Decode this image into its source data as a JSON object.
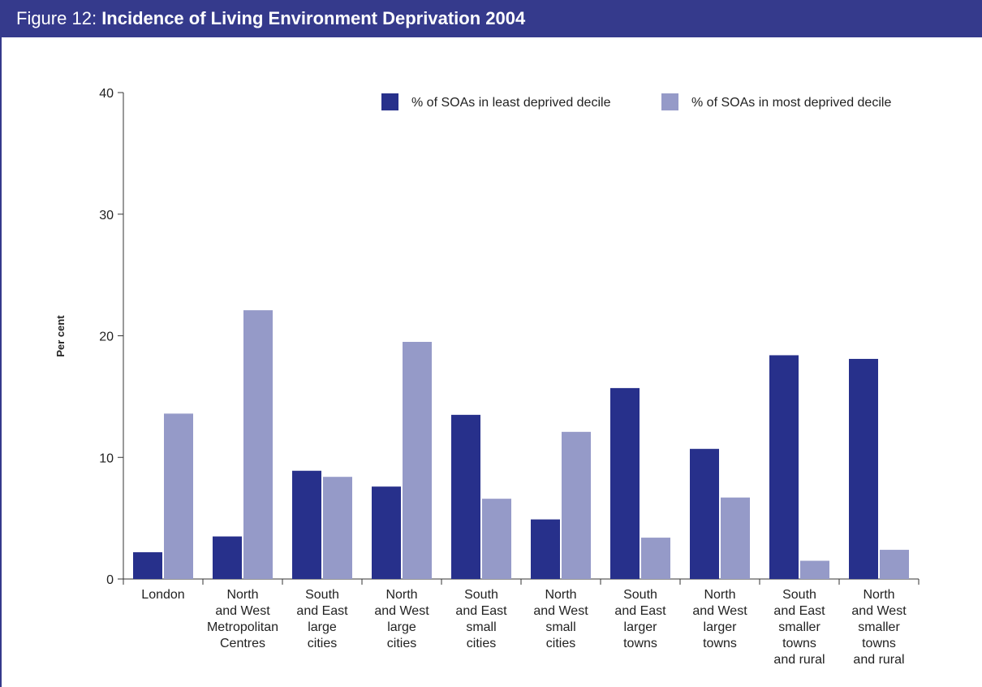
{
  "figure": {
    "label": "Figure 12:",
    "title": "Incidence of Living Environment Deprivation 2004"
  },
  "colors": {
    "title_bar": "#353a8c",
    "series_least": "#27308b",
    "series_most": "#959ac8",
    "axis": "#333333"
  },
  "chart_data": {
    "type": "bar",
    "title": "Incidence of Living Environment Deprivation 2004",
    "ylabel": "Per cent",
    "xlabel": "",
    "ylim": [
      0,
      40
    ],
    "yticks": [
      0,
      10,
      20,
      30,
      40
    ],
    "grid": false,
    "legend_position": "top-right",
    "categories": [
      [
        "London"
      ],
      [
        "North",
        "and West",
        "Metropolitan",
        "Centres"
      ],
      [
        "South",
        "and East",
        "large",
        "cities"
      ],
      [
        "North",
        "and West",
        "large",
        "cities"
      ],
      [
        "South",
        "and East",
        "small",
        "cities"
      ],
      [
        "North",
        "and West",
        "small",
        "cities"
      ],
      [
        "South",
        "and East",
        "larger",
        "towns"
      ],
      [
        "North",
        "and West",
        "larger",
        "towns"
      ],
      [
        "South",
        "and East",
        "smaller",
        "towns",
        "and rural"
      ],
      [
        "North",
        "and West",
        "smaller",
        "towns",
        "and rural"
      ]
    ],
    "series": [
      {
        "name": "% of SOAs in least deprived decile",
        "color": "#27308b",
        "values": [
          2.2,
          3.5,
          8.9,
          7.6,
          13.5,
          4.9,
          15.7,
          10.7,
          18.4,
          18.1
        ]
      },
      {
        "name": "% of SOAs in most deprived decile",
        "color": "#959ac8",
        "values": [
          13.6,
          22.1,
          8.4,
          19.5,
          6.6,
          12.1,
          3.4,
          6.7,
          1.5,
          2.4
        ]
      }
    ]
  }
}
